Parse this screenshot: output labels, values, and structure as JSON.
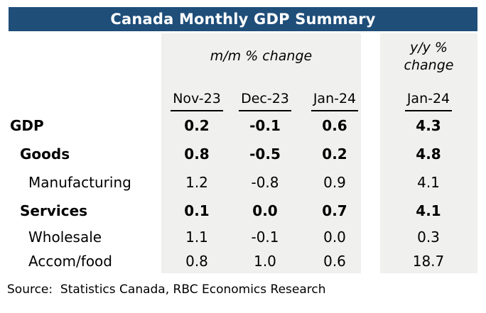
{
  "colors": {
    "title_bar": "#1f4e79",
    "title_text": "#ffffff",
    "band": "#f0f0ee",
    "text": "#000000"
  },
  "title": "Canada Monthly GDP Summary",
  "table": {
    "mm_group_label": "m/m % change",
    "yy_group_label_line1": "y/y %",
    "yy_group_label_line2": "change",
    "columns": [
      "Nov-23",
      "Dec-23",
      "Jan-24",
      "Jan-24"
    ],
    "rows": [
      {
        "label": "GDP",
        "emphasis": "bold",
        "values": [
          "0.2",
          "-0.1",
          "0.6",
          "4.3"
        ]
      },
      {
        "label": "Goods",
        "emphasis": "bold",
        "values": [
          "0.8",
          "-0.5",
          "0.2",
          "4.8"
        ]
      },
      {
        "label": "Manufacturing",
        "emphasis": "regular",
        "values": [
          "1.2",
          "-0.8",
          "0.9",
          "4.1"
        ]
      },
      {
        "label": "Services",
        "emphasis": "bold",
        "values": [
          "0.1",
          "0.0",
          "0.7",
          "4.1"
        ]
      },
      {
        "label": "Wholesale",
        "emphasis": "regular",
        "values": [
          "1.1",
          "-0.1",
          "0.0",
          "0.3"
        ]
      },
      {
        "label": "Accom/food",
        "emphasis": "regular",
        "values": [
          "0.8",
          "1.0",
          "0.6",
          "18.7"
        ]
      }
    ]
  },
  "source": "Source:  Statistics Canada, RBC Economics Research",
  "chart_data": {
    "type": "table",
    "title": "Canada Monthly GDP Summary",
    "column_groups": [
      {
        "label": "m/m % change",
        "columns": [
          "Nov-23",
          "Dec-23",
          "Jan-24"
        ]
      },
      {
        "label": "y/y % change",
        "columns": [
          "Jan-24"
        ]
      }
    ],
    "categories": [
      "GDP",
      "Goods",
      "Manufacturing",
      "Services",
      "Wholesale",
      "Accom/food"
    ],
    "series": [
      {
        "name": "Nov-23 m/m % change",
        "values": [
          0.2,
          0.8,
          1.2,
          0.1,
          1.1,
          0.8
        ]
      },
      {
        "name": "Dec-23 m/m % change",
        "values": [
          -0.1,
          -0.5,
          -0.8,
          0.0,
          -0.1,
          1.0
        ]
      },
      {
        "name": "Jan-24 m/m % change",
        "values": [
          0.6,
          0.2,
          0.9,
          0.7,
          0.0,
          0.6
        ]
      },
      {
        "name": "Jan-24 y/y % change",
        "values": [
          4.3,
          4.8,
          4.1,
          4.1,
          0.3,
          18.7
        ]
      }
    ],
    "source": "Source:  Statistics Canada, RBC Economics Research"
  }
}
